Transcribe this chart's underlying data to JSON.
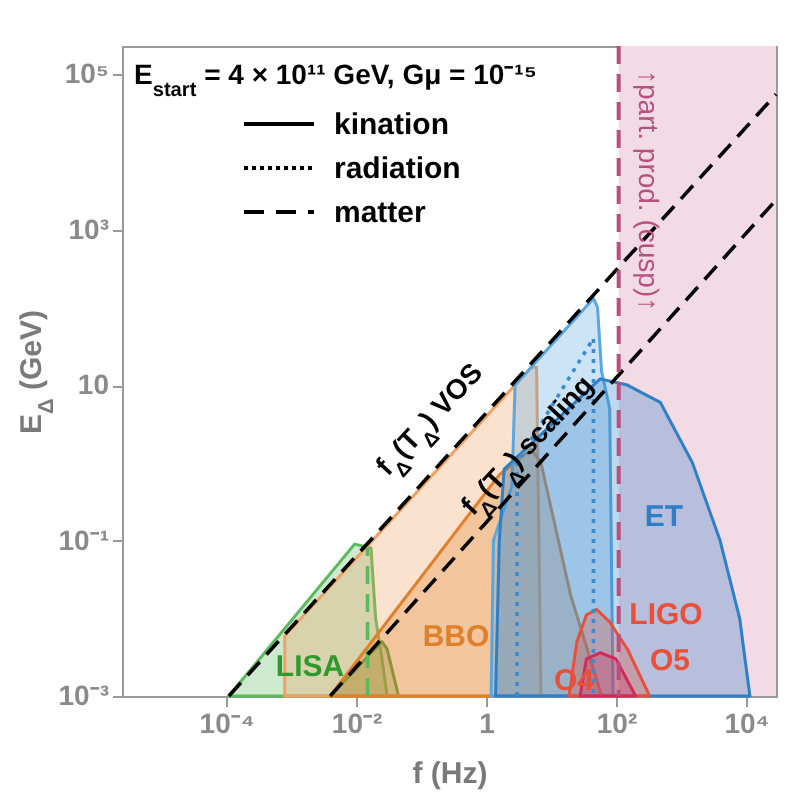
{
  "chart_data": {
    "type": "area",
    "title": "E$_{start}$ = 4 × 10¹¹ GeV, Gμ = 10⁻¹⁵",
    "xlabel": "f (Hz)",
    "ylabel": "E$_{Δ}$ (GeV)",
    "log": "xy",
    "grid": false,
    "xlim": [
      2.5e-06,
      29000
    ],
    "ylim": [
      0.001,
      230000
    ],
    "xticks": [
      {
        "value": 0.0001,
        "label": "10⁻⁴"
      },
      {
        "value": 0.01,
        "label": "10⁻²"
      },
      1,
      {
        "value": 100,
        "label": "10²"
      },
      {
        "value": 10000,
        "label": "10⁴"
      }
    ],
    "yticks": [
      {
        "value": 0.001,
        "label": "10⁻³"
      },
      {
        "value": 0.1,
        "label": "10⁻¹"
      },
      10,
      {
        "value": 1000,
        "label": "10³"
      },
      {
        "value": 100000,
        "label": "10⁵"
      }
    ],
    "bands": [
      {
        "axis": "x",
        "from": 110,
        "to": 29000,
        "color": "#f3dbe6"
      }
    ],
    "ref_lines": [
      {
        "axis": "x",
        "value": 110,
        "label": "↑part. prod. (cusp)↑",
        "color": "#b5507f",
        "line_style": "dashed"
      }
    ],
    "series": [
      {
        "color": "#5cb85c",
        "x": [
          0.00011,
          0.0095,
          0.017,
          0.02,
          0.025,
          0.03
        ],
        "values": [
          0.001,
          0.09,
          0.08,
          0.01,
          0.003,
          0.001
        ]
      },
      {
        "color": "#2e9a2e",
        "x": [
          0.004,
          0.025,
          0.03,
          0.045
        ],
        "values": [
          0.001,
          0.005,
          0.004,
          0.001
        ]
      },
      {
        "color": "#f0a060",
        "x": [
          0.0008,
          0.0008,
          5,
          6,
          7
        ],
        "values": [
          0.001,
          0.0059,
          17,
          17,
          0.001
        ]
      },
      {
        "color": "#e0802a",
        "x": [
          0.004,
          1.6,
          5,
          7,
          20,
          60
        ],
        "values": [
          0.001,
          0.7,
          1.5,
          1,
          0.02,
          0.001
        ]
      },
      {
        "color": "#5aa7e0",
        "x": [
          1.2,
          1.3,
          2.5,
          2.8,
          45,
          52,
          60,
          80,
          90
        ],
        "values": [
          0.001,
          0.1,
          0.5,
          10,
          130,
          100,
          15,
          5,
          0.001
        ]
      },
      {
        "color": "#2f7fc8",
        "x": [
          1.4,
          1.6,
          1.9,
          57,
          150,
          480,
          1500,
          4000,
          8000,
          11500
        ],
        "values": [
          0.001,
          0.1,
          0.83,
          12,
          10,
          6,
          1,
          0.1,
          0.01,
          0.001
        ]
      },
      {
        "color": "#e8503a",
        "x": [
          19,
          25,
          35,
          50,
          80,
          150,
          330
        ],
        "values": [
          0.001,
          0.005,
          0.011,
          0.013,
          0.009,
          0.004,
          0.001
        ]
      },
      {
        "color": "#d42a5a",
        "x": [
          28,
          35,
          57,
          100,
          200
        ],
        "values": [
          0.001,
          0.003,
          0.0036,
          0.003,
          0.001
        ]
      },
      {
        "type": "line",
        "color": "#3b8bd0",
        "line_style": "dotted",
        "x": [
          3,
          3,
          45,
          45
        ],
        "values": [
          0.001,
          1,
          40,
          0.001
        ]
      },
      {
        "type": "line",
        "color": "#5cb85c",
        "line_style": "dashed",
        "x": [
          0.015,
          0.015
        ],
        "values": [
          0.001,
          0.08
        ]
      },
      {
        "type": "line",
        "color": "#000000",
        "line_style": "dashed",
        "x": [
          0.00011,
          29000
        ],
        "values": [
          0.001,
          55000
        ]
      },
      {
        "type": "line",
        "color": "#000000",
        "line_style": "dashed",
        "x": [
          0.004,
          29000
        ],
        "values": [
          0.001,
          2400
        ]
      }
    ],
    "annotations": [
      "kination",
      "radiation",
      "matter",
      "f$_{Δ}$(T$_{Δ}$) VOS",
      "f$_{Δ}$(T$_{Δ}$) scaling",
      "LISA",
      "BBO",
      "ET",
      "LIGO",
      "O5",
      "O4"
    ]
  }
}
